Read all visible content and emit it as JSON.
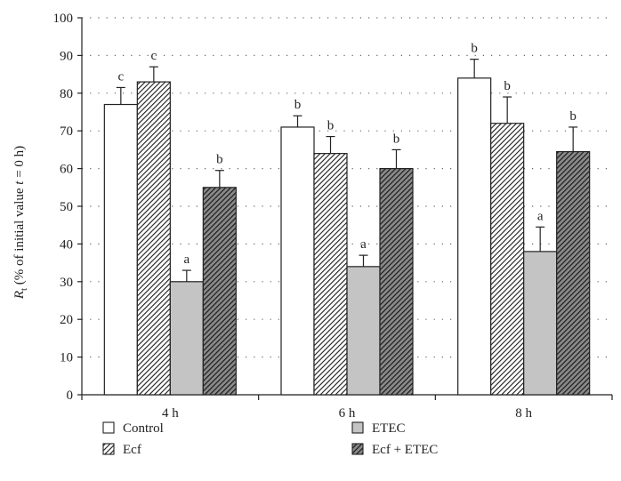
{
  "chart_data": {
    "type": "bar",
    "title": "",
    "xlabel": "",
    "ylabel": {
      "main": "R",
      "subscript": "t",
      "rest_before_t": " (% of initial value ",
      "italic_t": "t",
      "rest_after_t": " = 0 h)"
    },
    "ylim": [
      0,
      100
    ],
    "yticks": [
      "0",
      "10",
      "20",
      "30",
      "40",
      "50",
      "60",
      "70",
      "80",
      "90",
      "100"
    ],
    "grid": "horizontal-dotted",
    "legend_position": "bottom",
    "categories": [
      "4 h",
      "6 h",
      "8 h"
    ],
    "series": [
      {
        "name": "Control",
        "pattern": "white",
        "values": [
          77,
          71,
          84
        ],
        "errors": [
          4.5,
          3,
          5
        ],
        "labels": [
          "c",
          "b",
          "b"
        ]
      },
      {
        "name": "Ecf",
        "pattern": "hatch-light",
        "values": [
          83,
          64,
          72
        ],
        "errors": [
          4,
          4.5,
          7
        ],
        "labels": [
          "c",
          "b",
          "b"
        ]
      },
      {
        "name": "ETEC",
        "pattern": "gray",
        "values": [
          30,
          34,
          38
        ],
        "errors": [
          3,
          3,
          6.5
        ],
        "labels": [
          "a",
          "a",
          "a"
        ]
      },
      {
        "name": "Ecf + ETEC",
        "pattern": "hatch-dark",
        "values": [
          55,
          60,
          64.5
        ],
        "errors": [
          4.5,
          5,
          6.5
        ],
        "labels": [
          "b",
          "b",
          "b"
        ]
      }
    ],
    "colors": {
      "axis": "#222222",
      "bar_outline": "#222222",
      "white_fill": "#ffffff",
      "gray_fill": "#c4c4c4",
      "hatch_light_bg": "#ffffff",
      "hatch_dark_bg": "#8a8a8a",
      "hatch_stroke": "#1a1a1a",
      "grid": "#666666"
    }
  }
}
